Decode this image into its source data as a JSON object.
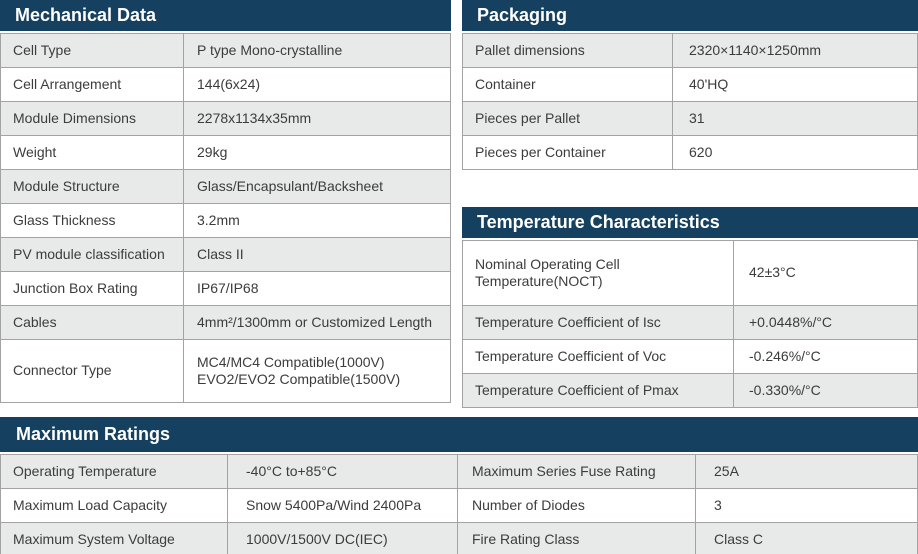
{
  "colors": {
    "header_bg": "#15405f",
    "header_text": "#ffffff",
    "row_alt": "#e8e9e9",
    "border": "#a3a3a3",
    "text": "#3c3c3c"
  },
  "tables": {
    "mechanical": {
      "title": "Mechanical Data",
      "rows": [
        {
          "label": "Cell Type",
          "value": "P type Mono-crystalline"
        },
        {
          "label": "Cell Arrangement",
          "value": "144(6x24)"
        },
        {
          "label": "Module Dimensions",
          "value": "2278x1134x35mm"
        },
        {
          "label": "Weight",
          "value": "29kg"
        },
        {
          "label": "Module Structure",
          "value": "Glass/Encapsulant/Backsheet"
        },
        {
          "label": "Glass Thickness",
          "value": "3.2mm"
        },
        {
          "label": "PV module classification",
          "value": "Class II"
        },
        {
          "label": "Junction Box Rating",
          "value": "IP67/IP68"
        },
        {
          "label": "Cables",
          "value": "4mm²/1300mm or Customized Length"
        },
        {
          "label": "Connector Type",
          "value": "MC4/MC4 Compatible(1000V)\nEVO2/EVO2 Compatible(1500V)"
        }
      ]
    },
    "packaging": {
      "title": "Packaging",
      "rows": [
        {
          "label": "Pallet dimensions",
          "value": "2320×1140×1250mm"
        },
        {
          "label": "Container",
          "value": "40'HQ"
        },
        {
          "label": "Pieces per Pallet",
          "value": "31"
        },
        {
          "label": "Pieces per Container",
          "value": "620"
        }
      ]
    },
    "temperature": {
      "title": "Temperature Characteristics",
      "rows": [
        {
          "label": "Nominal Operating Cell Temperature(NOCT)",
          "value": "42±3°C"
        },
        {
          "label": "Temperature Coefficient of Isc",
          "value": "+0.0448%/°C"
        },
        {
          "label": "Temperature Coefficient of Voc",
          "value": "-0.246%/°C"
        },
        {
          "label": "Temperature Coefficient of Pmax",
          "value": "-0.330%/°C"
        }
      ]
    },
    "maximum": {
      "title": "Maximum Ratings",
      "rows": [
        {
          "label1": "Operating Temperature",
          "value1": "-40°C to+85°C",
          "label2": "Maximum Series Fuse Rating",
          "value2": "25A"
        },
        {
          "label1": "Maximum Load Capacity",
          "value1": "Snow 5400Pa/Wind 2400Pa",
          "label2": "Number of Diodes",
          "value2": "3"
        },
        {
          "label1": "Maximum System Voltage",
          "value1": "1000V/1500V DC(IEC)",
          "label2": "Fire Rating Class",
          "value2": "Class C"
        }
      ]
    }
  }
}
